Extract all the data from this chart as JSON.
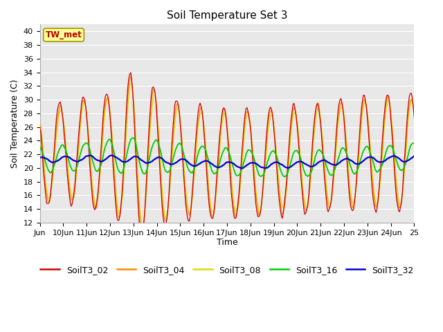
{
  "title": "Soil Temperature Set 3",
  "xlabel": "Time",
  "ylabel": "Soil Temperature (C)",
  "ylim": [
    12,
    41
  ],
  "yticks": [
    12,
    14,
    16,
    18,
    20,
    22,
    24,
    26,
    28,
    30,
    32,
    34,
    36,
    38,
    40
  ],
  "colors": {
    "SoilT3_02": "#cc0000",
    "SoilT3_04": "#ff8800",
    "SoilT3_08": "#dddd00",
    "SoilT3_16": "#00cc00",
    "SoilT3_32": "#0000cc"
  },
  "annotation_text": "TW_met",
  "annotation_color": "#bb0000",
  "annotation_bg": "#ffff99",
  "annotation_border": "#999900",
  "plot_bg": "#e8e8e8",
  "fig_bg": "#ffffff",
  "grid_color": "#ffffff",
  "title_fontsize": 11,
  "axis_fontsize": 9,
  "tick_fontsize": 8,
  "legend_fontsize": 9
}
